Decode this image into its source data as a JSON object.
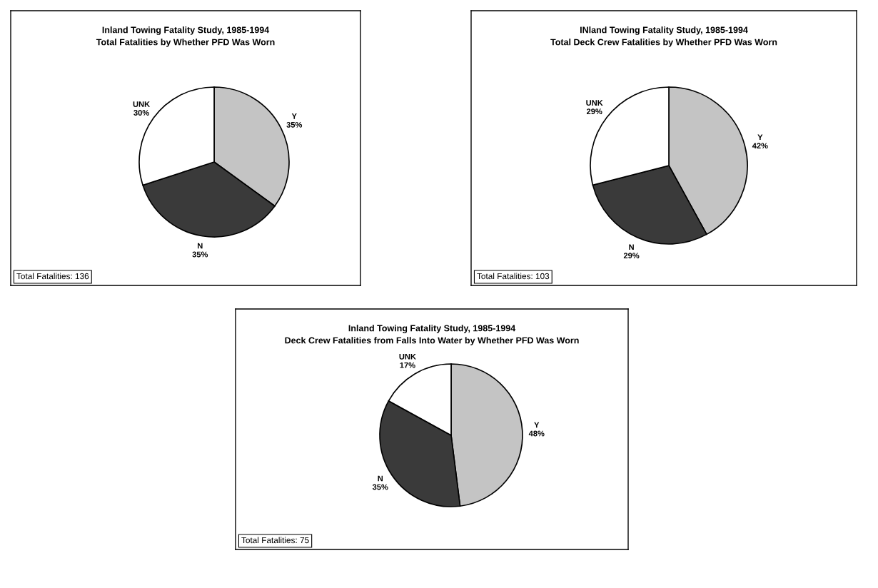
{
  "chart_data": [
    {
      "type": "pie",
      "title": "Inland Towing Fatality Study, 1985-1994",
      "subtitle": "Total Fatalities by Whether PFD Was Worn",
      "categories": [
        "Y",
        "N",
        "UNK"
      ],
      "values": [
        35,
        35,
        30
      ],
      "value_labels": [
        "35%",
        "35%",
        "30%"
      ],
      "colors": [
        "#c4c4c4",
        "#3a3a3a",
        "#ffffff"
      ],
      "annotations": [
        "Total Fatalities: 136"
      ]
    },
    {
      "type": "pie",
      "title": "INland Towing Fatality Study, 1985-1994",
      "subtitle": "Total Deck Crew Fatalities by Whether PFD Was Worn",
      "categories": [
        "Y",
        "N",
        "UNK"
      ],
      "values": [
        42,
        29,
        29
      ],
      "value_labels": [
        "42%",
        "29%",
        "29%"
      ],
      "colors": [
        "#c4c4c4",
        "#3a3a3a",
        "#ffffff"
      ],
      "annotations": [
        "Total Fatalities: 103"
      ]
    },
    {
      "type": "pie",
      "title": "Inland Towing Fatality Study, 1985-1994",
      "subtitle": "Deck Crew Fatalities from Falls Into Water by Whether PFD Was Worn",
      "categories": [
        "Y",
        "N",
        "UNK"
      ],
      "values": [
        48,
        35,
        17
      ],
      "value_labels": [
        "48%",
        "35%",
        "17%"
      ],
      "colors": [
        "#c4c4c4",
        "#3a3a3a",
        "#ffffff"
      ],
      "annotations": [
        "Total Fatalities: 75"
      ]
    }
  ]
}
